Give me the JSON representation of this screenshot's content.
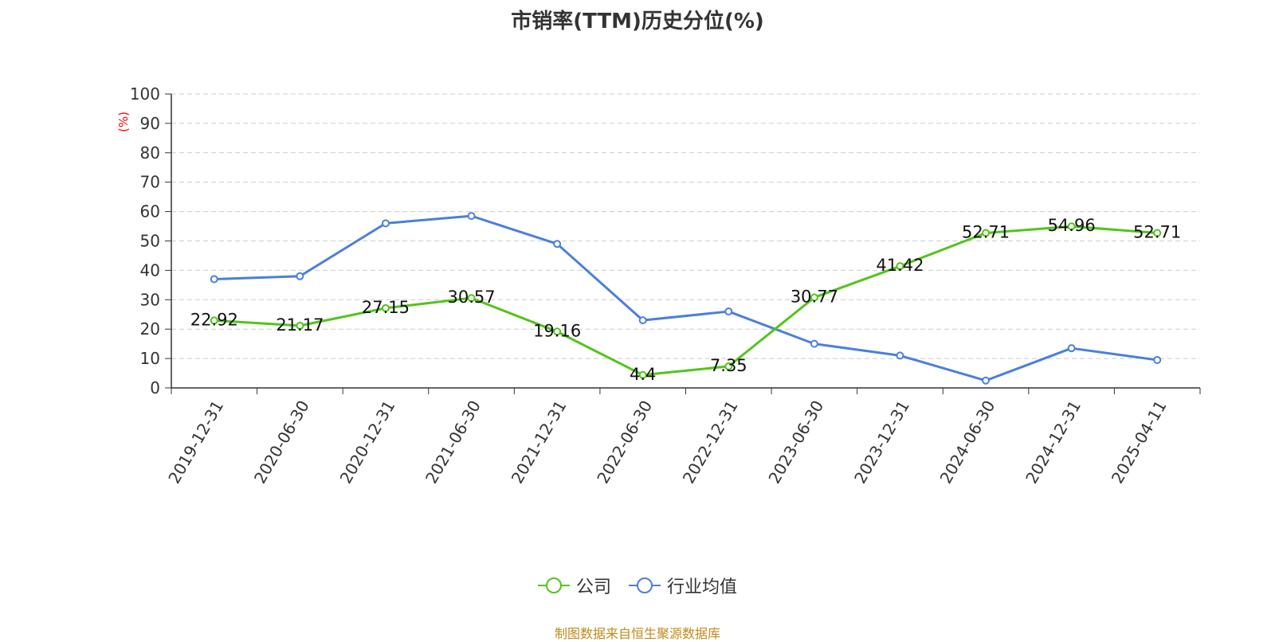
{
  "title": "市销率(TTM)历史分位(%)",
  "source_note": "制图数据来自恒生聚源数据库",
  "colors": {
    "company": "#52c41a",
    "industry": "#4a7fdc",
    "ylabel": "#ff0000",
    "source": "#c08a1a"
  },
  "chart_data": {
    "type": "line",
    "title": "市销率(TTM)历史分位(%)",
    "ylabel": "(%)",
    "xlabel": "",
    "ylim": [
      0,
      100
    ],
    "yticks": [
      0,
      10,
      20,
      30,
      40,
      50,
      60,
      70,
      80,
      90,
      100
    ],
    "grid": true,
    "legend_position": "bottom",
    "categories": [
      "2019-12-31",
      "2020-06-30",
      "2020-12-31",
      "2021-06-30",
      "2021-12-31",
      "2022-06-30",
      "2022-12-31",
      "2023-06-30",
      "2023-12-31",
      "2024-06-30",
      "2024-12-31",
      "2025-04-11"
    ],
    "series": [
      {
        "name": "公司",
        "color": "#52c41a",
        "show_labels": true,
        "values": [
          22.92,
          21.17,
          27.15,
          30.57,
          19.16,
          4.4,
          7.35,
          30.77,
          41.42,
          52.71,
          54.96,
          52.71
        ]
      },
      {
        "name": "行业均值",
        "color": "#4a7fdc",
        "show_labels": false,
        "values": [
          37,
          38,
          56,
          58.5,
          49,
          23,
          26,
          15,
          11,
          2.5,
          13.5,
          9.5
        ]
      }
    ]
  }
}
